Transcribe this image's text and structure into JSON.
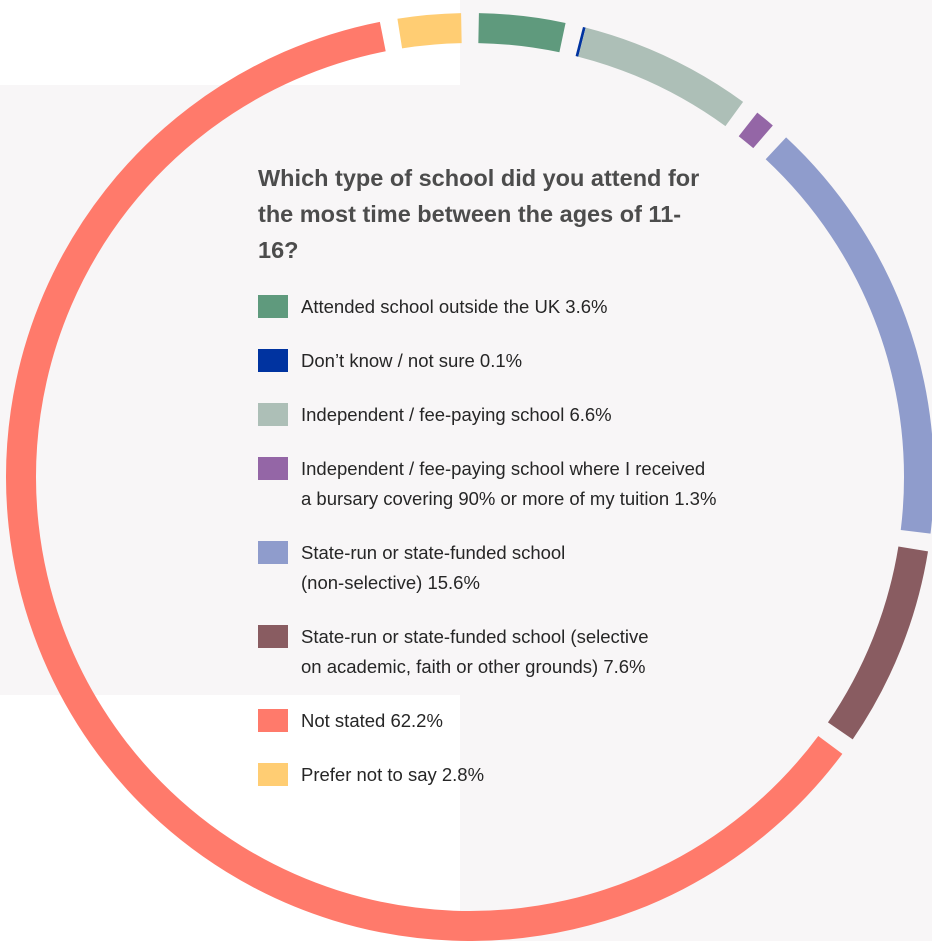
{
  "chart_data": {
    "type": "pie",
    "title": "Which type of school did you attend for the most time between the ages of 11-16?",
    "categories": [
      "Attended school outside the UK",
      "Don’t know / not sure",
      "Independent / fee-paying school",
      "Independent / fee-paying school where I received a bursary covering 90% or more of my tuition",
      "State-run or state-funded school (non-selective)",
      "State-run or state-funded school (selective on academic, faith or other grounds)",
      "Not stated",
      "Prefer not to say"
    ],
    "values": [
      3.6,
      0.1,
      6.6,
      1.3,
      15.6,
      7.6,
      62.2,
      2.8
    ],
    "colors": [
      "#5f9a7d",
      "#0033a0",
      "#adbfb7",
      "#9466a6",
      "#8f9ccc",
      "#895c61",
      "#ff7a6b",
      "#ffcd73"
    ],
    "legend": [
      {
        "lines": [
          "Attended school outside the UK 3.6%"
        ]
      },
      {
        "lines": [
          "Don’t know / not sure 0.1%"
        ]
      },
      {
        "lines": [
          "Independent / fee-paying school 6.6%"
        ]
      },
      {
        "lines": [
          "Independent / fee-paying school where I received",
          "a bursary covering 90% or more of my tuition 1.3%"
        ]
      },
      {
        "lines": [
          "State-run or state-funded school",
          "(non-selective) 15.6%"
        ]
      },
      {
        "lines": [
          "State-run or state-funded school (selective",
          "on academic, faith or other grounds) 7.6%"
        ]
      },
      {
        "lines": [
          "Not stated 62.2%"
        ]
      },
      {
        "lines": [
          "Prefer not to say 2.8%"
        ]
      }
    ]
  }
}
